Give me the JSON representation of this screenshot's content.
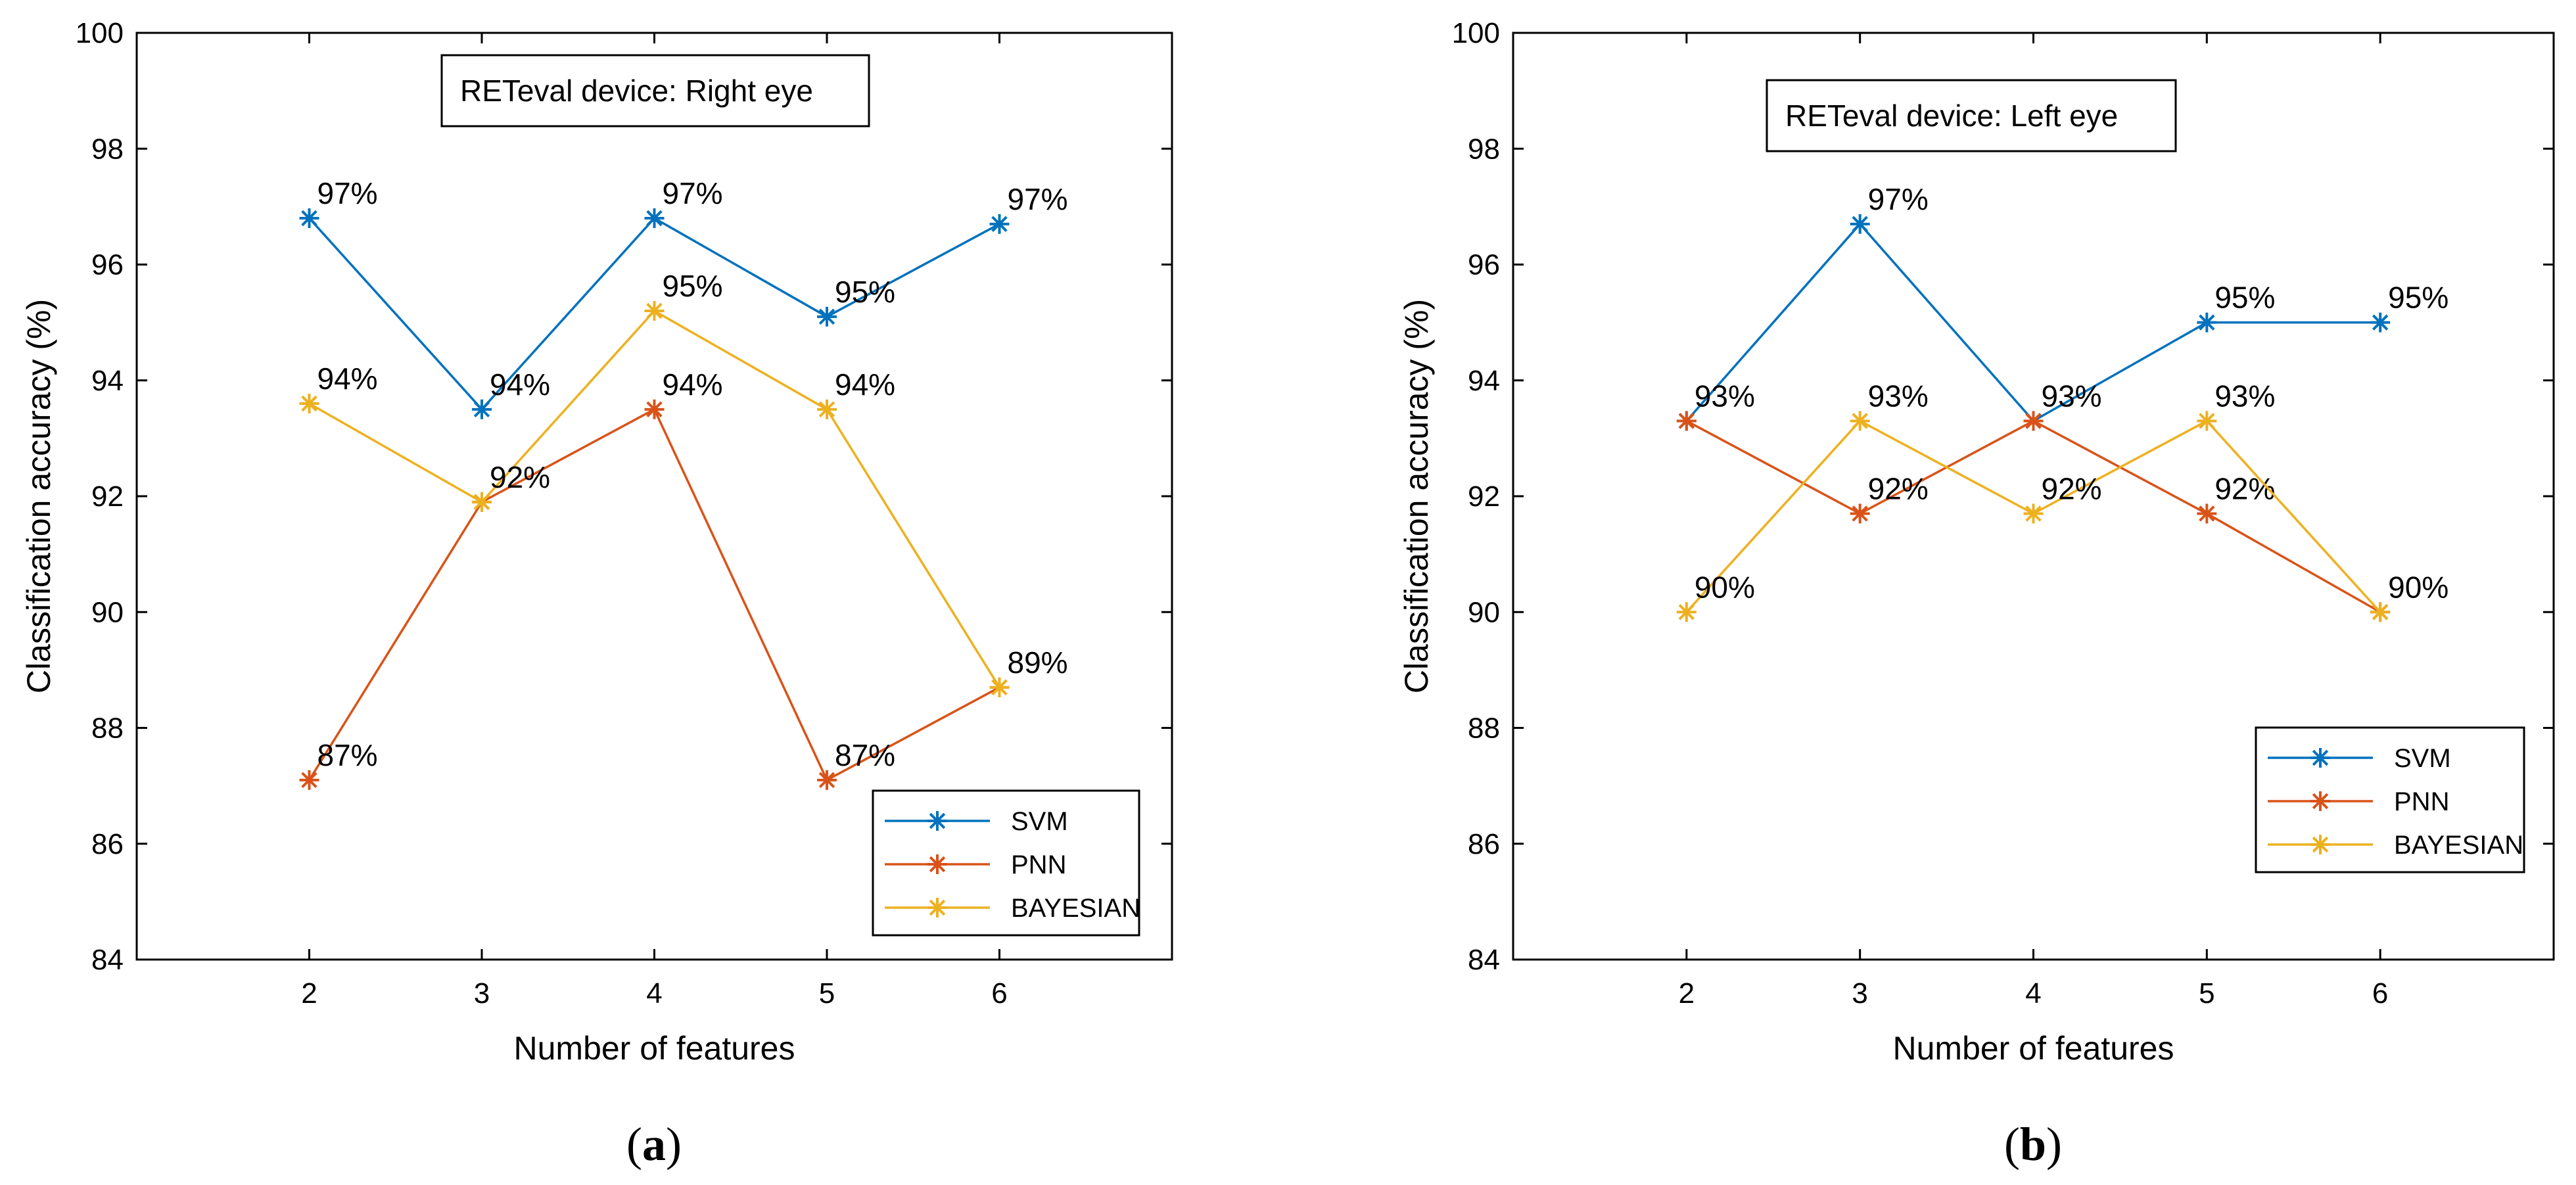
{
  "colors": {
    "svm": "#0072BD",
    "pnn": "#D95319",
    "bayesian": "#EDB120",
    "axis": "#000000"
  },
  "chart_data": [
    {
      "type": "line",
      "panel": "a",
      "caption_open": "(",
      "caption_letter": "a",
      "caption_close": ")",
      "title": "RETeval device: Right eye",
      "xlabel": "Number of features",
      "ylabel": "Classification accuracy (%)",
      "x": [
        2,
        3,
        4,
        5,
        6
      ],
      "xlim": [
        1,
        7
      ],
      "ylim": [
        84,
        100
      ],
      "yticks": [
        84,
        86,
        88,
        90,
        92,
        94,
        96,
        98,
        100
      ],
      "xticks": [
        2,
        3,
        4,
        5,
        6
      ],
      "legend_position": "bottom-right",
      "series": [
        {
          "name": "SVM",
          "color_key": "svm",
          "values": [
            96.8,
            93.5,
            96.8,
            95.1,
            96.7
          ],
          "labels": [
            "97%",
            "94%",
            "97%",
            "95%",
            "97%"
          ]
        },
        {
          "name": "PNN",
          "color_key": "pnn",
          "values": [
            87.1,
            91.9,
            93.5,
            87.1,
            88.7
          ],
          "labels": [
            "87%",
            "",
            "94%",
            "87%",
            ""
          ]
        },
        {
          "name": "BAYESIAN",
          "color_key": "bayesian",
          "values": [
            93.6,
            91.9,
            95.2,
            93.5,
            88.7
          ],
          "labels": [
            "94%",
            "92%",
            "95%",
            "94%",
            "89%"
          ]
        }
      ]
    },
    {
      "type": "line",
      "panel": "b",
      "caption_open": "(",
      "caption_letter": "b",
      "caption_close": ")",
      "title": "RETeval device: Left eye",
      "xlabel": "Number of features",
      "ylabel": "Classification accuracy (%)",
      "x": [
        2,
        3,
        4,
        5,
        6
      ],
      "xlim": [
        1,
        7
      ],
      "ylim": [
        84,
        100
      ],
      "yticks": [
        84,
        86,
        88,
        90,
        92,
        94,
        96,
        98,
        100
      ],
      "xticks": [
        2,
        3,
        4,
        5,
        6
      ],
      "legend_position": "bottom-right",
      "series": [
        {
          "name": "SVM",
          "color_key": "svm",
          "values": [
            93.3,
            96.7,
            93.3,
            95.0,
            95.0
          ],
          "labels": [
            "",
            "97%",
            "",
            "95%",
            "95%"
          ]
        },
        {
          "name": "PNN",
          "color_key": "pnn",
          "values": [
            93.3,
            91.7,
            93.3,
            91.7,
            90.0
          ],
          "labels": [
            "93%",
            "92%",
            "93%",
            "92%",
            ""
          ]
        },
        {
          "name": "BAYESIAN",
          "color_key": "bayesian",
          "values": [
            90.0,
            93.3,
            91.7,
            93.3,
            90.0
          ],
          "labels": [
            "90%",
            "93%",
            "92%",
            "93%",
            "90%"
          ]
        }
      ]
    }
  ]
}
